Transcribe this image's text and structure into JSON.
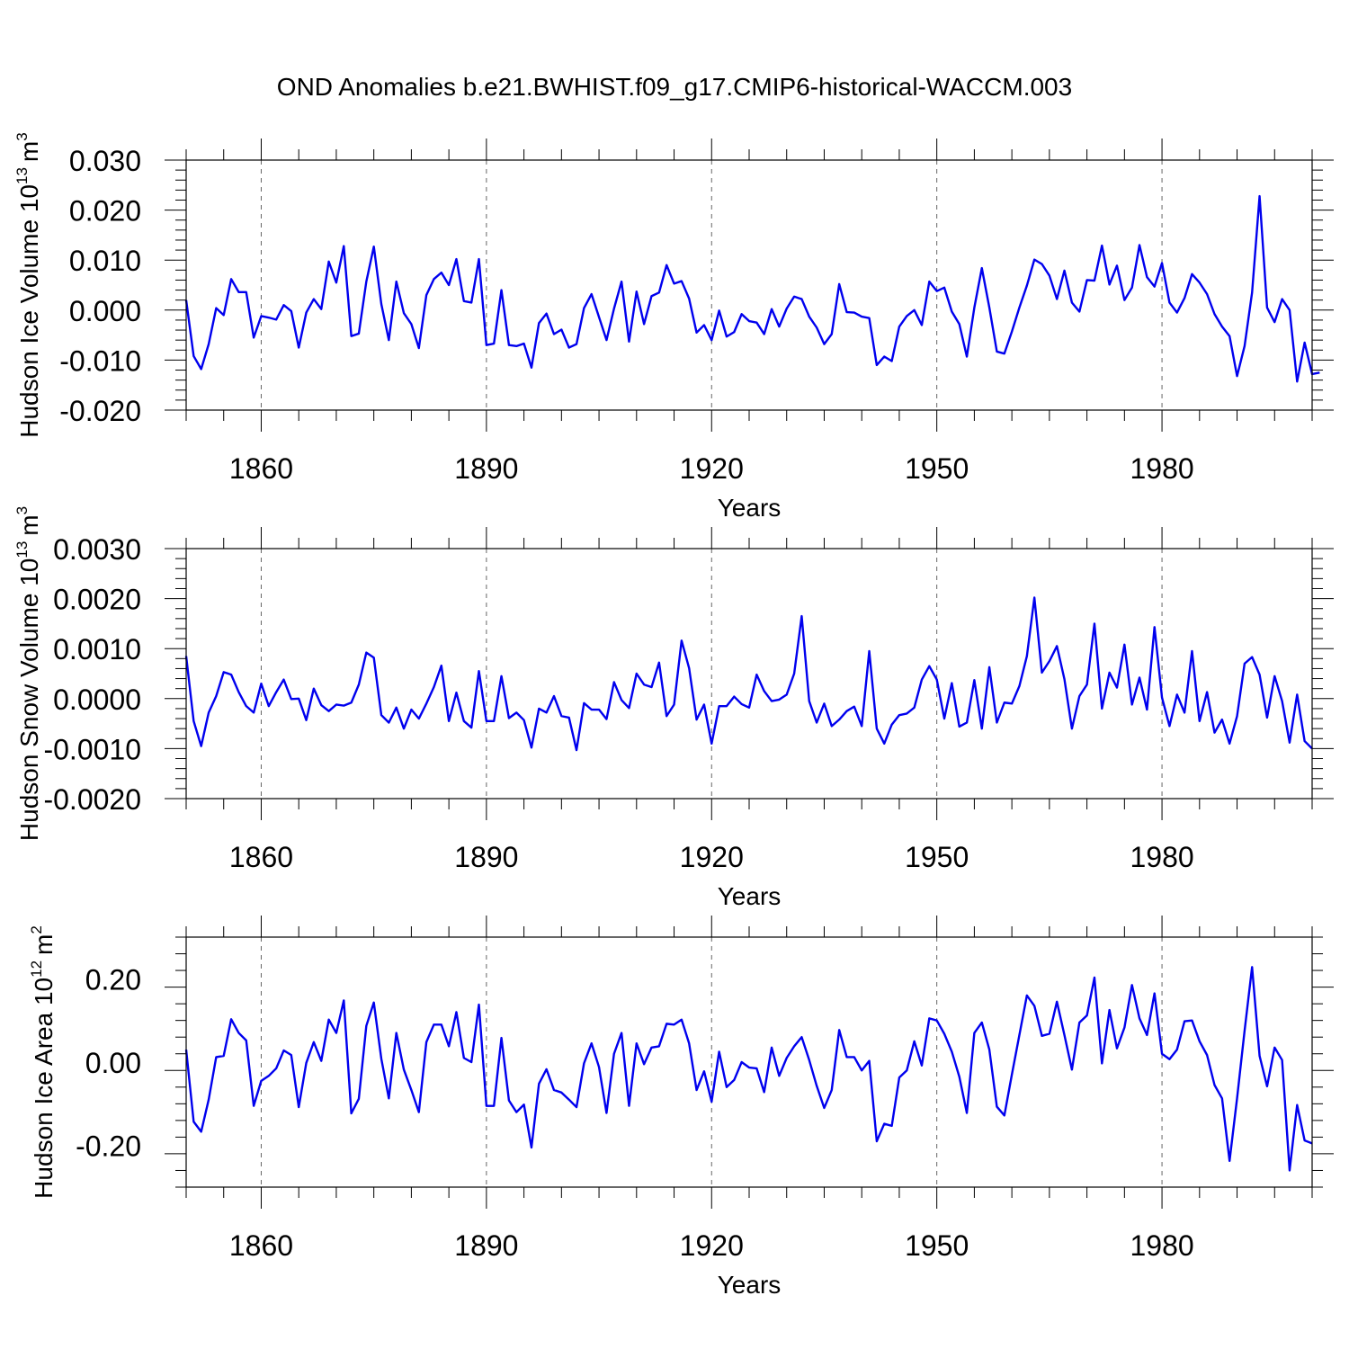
{
  "title": "OND Anomalies b.e21.BWHIST.f09_g17.CMIP6-historical-WACCM.003",
  "chart_data": [
    {
      "type": "line",
      "ylabel_main": "Hudson Ice Volume 10",
      "ylabel_exp": "13",
      "ylabel_unit": "m",
      "ylabel_unit_exp": "3",
      "xlabel": "Years",
      "xlim": [
        1850,
        2000
      ],
      "ylim": [
        -0.02,
        0.03
      ],
      "xticks": [
        1860,
        1890,
        1920,
        1950,
        1980
      ],
      "xtick_labels": [
        "1860",
        "1890",
        "1920",
        "1950",
        "1980"
      ],
      "yticks": [
        -0.02,
        -0.01,
        0.0,
        0.01,
        0.02,
        0.03
      ],
      "ytick_labels": [
        "-0.020",
        "-0.010",
        "0.000",
        "0.010",
        "0.020",
        "0.030"
      ],
      "grid": "vertical-dashed",
      "line_color": "#0000ee",
      "x_start": 1850,
      "values": [
        0.002,
        -0.0092,
        -0.0118,
        -0.0068,
        0.0004,
        -0.001,
        0.0062,
        0.0036,
        0.0036,
        -0.0055,
        -0.0012,
        -0.0015,
        -0.0019,
        0.001,
        -0.0002,
        -0.0075,
        -0.0005,
        0.0022,
        0.0002,
        0.0097,
        0.0055,
        0.0128,
        -0.0052,
        -0.0047,
        0.0057,
        0.0127,
        0.0012,
        -0.006,
        0.0057,
        -0.0006,
        -0.0028,
        -0.0076,
        0.003,
        0.0062,
        0.0075,
        0.005,
        0.0102,
        0.0018,
        0.0015,
        0.0102,
        -0.007,
        -0.0067,
        0.004,
        -0.007,
        -0.0072,
        -0.0067,
        -0.0115,
        -0.0026,
        -0.0007,
        -0.0048,
        -0.0039,
        -0.0075,
        -0.0068,
        0.0004,
        0.0032,
        -0.0014,
        -0.006,
        0.0003,
        0.0057,
        -0.0063,
        0.0037,
        -0.0028,
        0.0028,
        0.0035,
        0.009,
        0.0053,
        0.0058,
        0.0023,
        -0.0045,
        -0.003,
        -0.006,
        -0.0001,
        -0.0053,
        -0.0044,
        -0.0008,
        -0.0022,
        -0.0025,
        -0.0048,
        0.0002,
        -0.0033,
        0.0003,
        0.0027,
        0.0022,
        -0.0013,
        -0.0035,
        -0.0068,
        -0.0048,
        0.0052,
        -0.0004,
        -0.0005,
        -0.0013,
        -0.0016,
        -0.011,
        -0.0093,
        -0.0102,
        -0.0033,
        -0.0012,
        0.0,
        -0.003,
        0.0057,
        0.0038,
        0.0045,
        -0.0003,
        -0.0028,
        -0.0093,
        0.0005,
        0.0084,
        0.0005,
        -0.0083,
        -0.0087,
        -0.0043,
        0.0005,
        0.0049,
        0.0101,
        0.0092,
        0.0069,
        0.0022,
        0.0079,
        0.0015,
        -0.0003,
        0.006,
        0.0059,
        0.0129,
        0.0051,
        0.0089,
        0.002,
        0.0045,
        0.013,
        0.0066,
        0.0047,
        0.0094,
        0.0015,
        -0.0005,
        0.0024,
        0.0072,
        0.0055,
        0.0032,
        -0.0008,
        -0.0033,
        -0.0052,
        -0.0132,
        -0.0072,
        0.0035,
        0.0228,
        0.0005,
        -0.0024,
        0.0022,
        0.0,
        -0.0143,
        -0.0065,
        -0.0128,
        -0.0125
      ]
    },
    {
      "type": "line",
      "ylabel_main": "Hudson Snow Volume 10",
      "ylabel_exp": "13",
      "ylabel_unit": "m",
      "ylabel_unit_exp": "3",
      "xlabel": "Years",
      "xlim": [
        1850,
        2000
      ],
      "ylim": [
        -0.002,
        0.003
      ],
      "xticks": [
        1860,
        1890,
        1920,
        1950,
        1980
      ],
      "xtick_labels": [
        "1860",
        "1890",
        "1920",
        "1950",
        "1980"
      ],
      "yticks": [
        -0.002,
        -0.001,
        0.0,
        0.001,
        0.002,
        0.003
      ],
      "ytick_labels": [
        "-0.0020",
        "-0.0010",
        "0.0000",
        "0.0010",
        "0.0020",
        "0.0030"
      ],
      "grid": "vertical-dashed",
      "line_color": "#0000ee",
      "x_start": 1850,
      "values": [
        0.00085,
        -0.00045,
        -0.00095,
        -0.00028,
        5e-05,
        0.00053,
        0.00048,
        0.00013,
        -0.00015,
        -0.00028,
        0.0003,
        -0.00015,
        0.00013,
        0.00038,
        -1e-05,
        0.0,
        -0.00043,
        0.0002,
        -0.00013,
        -0.00025,
        -0.00012,
        -0.00014,
        -8e-05,
        0.00028,
        0.00092,
        0.00082,
        -0.00033,
        -0.00048,
        -0.00018,
        -0.0006,
        -0.00022,
        -0.0004,
        -0.0001,
        0.00023,
        0.00066,
        -0.00045,
        0.00012,
        -0.00045,
        -0.00058,
        0.00055,
        -0.00045,
        -0.00045,
        0.00045,
        -0.00039,
        -0.00028,
        -0.00043,
        -0.00098,
        -0.0002,
        -0.00028,
        5e-05,
        -0.00035,
        -0.00038,
        -0.00103,
        -9e-05,
        -0.00022,
        -0.00022,
        -0.00041,
        0.00033,
        -3e-05,
        -0.00019,
        0.0005,
        0.00028,
        0.00023,
        0.00072,
        -0.00035,
        -0.00012,
        0.00116,
        0.00061,
        -0.00042,
        -0.00012,
        -0.0009,
        -0.00015,
        -0.00015,
        4e-05,
        -0.00011,
        -0.00018,
        0.00048,
        0.00015,
        -5e-05,
        -2e-05,
        8e-05,
        0.0005,
        0.00165,
        -5e-05,
        -0.00048,
        -0.0001,
        -0.00055,
        -0.00042,
        -0.00025,
        -0.00016,
        -0.00055,
        0.00095,
        -0.0006,
        -0.0009,
        -0.00052,
        -0.00033,
        -0.0003,
        -0.00018,
        0.00038,
        0.00065,
        0.00038,
        -0.0004,
        0.00031,
        -0.00056,
        -0.00048,
        0.00037,
        -0.0006,
        0.00063,
        -0.00048,
        -8e-05,
        -0.0001,
        0.00025,
        0.00085,
        0.00202,
        0.00052,
        0.00075,
        0.00105,
        0.00039,
        -0.0006,
        5e-05,
        0.00028,
        0.0015,
        -0.0002,
        0.00052,
        0.00022,
        0.00108,
        -0.00012,
        0.00042,
        -0.00022,
        0.00143,
        2e-05,
        -0.00055,
        8e-05,
        -0.00028,
        0.00095,
        -0.00045,
        0.00013,
        -0.00068,
        -0.00042,
        -0.0009,
        -0.00035,
        0.0007,
        0.00083,
        0.00048,
        -0.00038,
        0.00045,
        -5e-05,
        -0.00088,
        8e-05,
        -0.00085,
        -0.001
      ]
    },
    {
      "type": "line",
      "ylabel_main": "Hudson Ice Area 10",
      "ylabel_exp": "12",
      "ylabel_unit": "m",
      "ylabel_unit_exp": "2",
      "xlabel": "Years",
      "xlim": [
        1850,
        2000
      ],
      "ylim": [
        -0.3,
        0.3
      ],
      "xticks": [
        1860,
        1890,
        1920,
        1950,
        1980
      ],
      "xtick_labels": [
        "1860",
        "1890",
        "1920",
        "1950",
        "1980"
      ],
      "yticks": [
        -0.2,
        0.0,
        0.2
      ],
      "ytick_labels": [
        "-0.20",
        "0.00",
        "0.20"
      ],
      "grid": "vertical-dashed",
      "line_color": "#0000ee",
      "x_start": 1850,
      "values": [
        0.03,
        -0.143,
        -0.167,
        -0.09,
        0.012,
        0.015,
        0.103,
        0.07,
        0.052,
        -0.105,
        -0.045,
        -0.033,
        -0.015,
        0.028,
        0.017,
        -0.108,
        -0.002,
        0.048,
        0.003,
        0.102,
        0.07,
        0.148,
        -0.123,
        -0.088,
        0.087,
        0.143,
        0.008,
        -0.087,
        0.07,
        -0.018,
        -0.067,
        -0.12,
        0.048,
        0.09,
        0.09,
        0.038,
        0.12,
        0.01,
        0.0,
        0.138,
        -0.105,
        -0.105,
        0.058,
        -0.092,
        -0.12,
        -0.102,
        -0.205,
        -0.052,
        -0.017,
        -0.067,
        -0.073,
        -0.09,
        -0.108,
        -0.003,
        0.045,
        -0.012,
        -0.122,
        0.02,
        0.07,
        -0.105,
        0.045,
        -0.005,
        0.035,
        0.038,
        0.092,
        0.09,
        0.102,
        0.045,
        -0.067,
        -0.022,
        -0.095,
        0.025,
        -0.06,
        -0.043,
        0.0,
        -0.013,
        -0.015,
        -0.072,
        0.035,
        -0.033,
        0.01,
        0.038,
        0.06,
        0.005,
        -0.057,
        -0.11,
        -0.067,
        0.077,
        0.012,
        0.012,
        -0.02,
        0.003,
        -0.19,
        -0.148,
        -0.153,
        -0.037,
        -0.02,
        0.05,
        -0.008,
        0.105,
        0.1,
        0.068,
        0.025,
        -0.035,
        -0.122,
        0.07,
        0.095,
        0.03,
        -0.107,
        -0.128,
        -0.03,
        0.065,
        0.16,
        0.135,
        0.063,
        0.068,
        0.145,
        0.065,
        -0.018,
        0.095,
        0.112,
        0.203,
        -0.003,
        0.125,
        0.033,
        0.083,
        0.185,
        0.105,
        0.065,
        0.165,
        0.02,
        0.007,
        0.03,
        0.098,
        0.1,
        0.05,
        0.017,
        -0.055,
        -0.087,
        -0.237,
        -0.087,
        0.075,
        0.228,
        0.015,
        -0.058,
        0.035,
        0.005,
        -0.26,
        -0.103,
        -0.188,
        -0.195
      ]
    }
  ]
}
